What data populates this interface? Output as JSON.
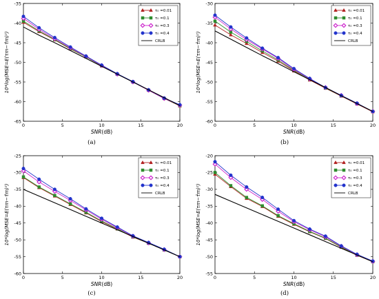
{
  "legend_labels": [
    "τ₀ =0.01",
    "τ₀ =0.1",
    "τ₀ =0.3",
    "τ₀ =0.4",
    "CRLB"
  ],
  "series_colors": [
    "#b22222",
    "#2e8b2e",
    "#cc22cc",
    "#2233cc",
    "#000000"
  ],
  "series_markers": [
    "triangle",
    "square",
    "diamond",
    "circle",
    "none"
  ],
  "chart_data": [
    {
      "type": "line",
      "caption": "(a)",
      "xlabel_var": "SNR",
      "xlabel_unit": "(dB)",
      "ylabel": "10*log(MSE=E(τm−τ̂m)²)",
      "xlim": [
        0,
        20
      ],
      "ylim": [
        -65,
        -35
      ],
      "xticks": [
        0,
        5,
        10,
        15,
        20
      ],
      "yticks": [
        -65,
        -60,
        -55,
        -50,
        -45,
        -40,
        -35
      ],
      "legend_position": "top-right",
      "x": [
        0,
        2,
        4,
        6,
        8,
        10,
        12,
        14,
        16,
        18,
        20
      ],
      "series": [
        {
          "name": "τ₀ =0.01",
          "values": [
            -39.8,
            -42.2,
            -44.3,
            -46.6,
            -48.6,
            -50.9,
            -53.0,
            -55.0,
            -57.1,
            -59.2,
            -61.1
          ]
        },
        {
          "name": "τ₀ =0.1",
          "values": [
            -39.5,
            -42.0,
            -44.2,
            -46.5,
            -48.6,
            -50.9,
            -53.0,
            -55.0,
            -57.1,
            -59.2,
            -61.0
          ]
        },
        {
          "name": "τ₀ =0.3",
          "values": [
            -38.8,
            -41.6,
            -44.0,
            -46.3,
            -48.5,
            -50.8,
            -53.0,
            -55.0,
            -57.1,
            -59.2,
            -60.9
          ]
        },
        {
          "name": "τ₀ =0.4",
          "values": [
            -38.3,
            -41.2,
            -43.7,
            -46.1,
            -48.4,
            -50.7,
            -52.9,
            -54.9,
            -57.0,
            -59.1,
            -60.8
          ]
        },
        {
          "name": "CRLB",
          "values": [
            -41.0,
            -43.1,
            -45.0,
            -47.0,
            -49.0,
            -51.0,
            -53.0,
            -55.0,
            -57.0,
            -59.0,
            -61.0
          ]
        }
      ]
    },
    {
      "type": "line",
      "caption": "(b)",
      "xlabel_var": "SNR",
      "xlabel_unit": "(dB)",
      "ylabel": "10*log(MSE=E(τm−τ̂m)²)",
      "xlim": [
        0,
        20
      ],
      "ylim": [
        -60,
        -30
      ],
      "xticks": [
        0,
        5,
        10,
        15,
        20
      ],
      "yticks": [
        -60,
        -55,
        -50,
        -45,
        -40,
        -35,
        -30
      ],
      "legend_position": "top-right",
      "x": [
        0,
        2,
        4,
        6,
        8,
        10,
        12,
        14,
        16,
        18,
        20
      ],
      "series": [
        {
          "name": "τ₀ =0.01",
          "values": [
            -35.5,
            -38.0,
            -40.2,
            -42.5,
            -44.7,
            -47.2,
            -49.5,
            -51.6,
            -53.6,
            -55.6,
            -57.6
          ]
        },
        {
          "name": "τ₀ =0.1",
          "values": [
            -34.5,
            -37.3,
            -39.7,
            -42.1,
            -44.4,
            -47.0,
            -49.3,
            -51.5,
            -53.5,
            -55.5,
            -57.5
          ]
        },
        {
          "name": "τ₀ =0.3",
          "values": [
            -33.5,
            -36.5,
            -39.2,
            -41.6,
            -44.0,
            -46.8,
            -49.2,
            -51.4,
            -53.4,
            -55.5,
            -57.5
          ]
        },
        {
          "name": "τ₀ =0.4",
          "values": [
            -33.0,
            -36.0,
            -38.8,
            -41.4,
            -43.8,
            -46.6,
            -49.1,
            -51.4,
            -53.4,
            -55.4,
            -57.5
          ]
        },
        {
          "name": "CRLB",
          "values": [
            -37.0,
            -39.1,
            -41.2,
            -43.3,
            -45.3,
            -47.4,
            -49.4,
            -51.4,
            -53.5,
            -55.5,
            -57.5
          ]
        }
      ]
    },
    {
      "type": "line",
      "caption": "(c)",
      "xlabel_var": "SNR",
      "xlabel_unit": "(dB)",
      "ylabel": "10*log(MSE=E(τm−τ̂m)²)",
      "xlim": [
        0,
        20
      ],
      "ylim": [
        -60,
        -25
      ],
      "xticks": [
        0,
        5,
        10,
        15,
        20
      ],
      "yticks": [
        -60,
        -55,
        -50,
        -45,
        -40,
        -35,
        -30,
        -25
      ],
      "legend_position": "top-right",
      "x": [
        0,
        2,
        4,
        6,
        8,
        10,
        12,
        14,
        16,
        18,
        20
      ],
      "series": [
        {
          "name": "τ₀ =0.01",
          "values": [
            -31.5,
            -34.5,
            -37.0,
            -39.5,
            -42.0,
            -44.6,
            -46.8,
            -49.2,
            -51.0,
            -53.0,
            -55.0
          ]
        },
        {
          "name": "τ₀ =0.1",
          "values": [
            -31.3,
            -34.3,
            -36.8,
            -39.3,
            -41.8,
            -44.4,
            -46.7,
            -49.1,
            -51.0,
            -53.0,
            -55.0
          ]
        },
        {
          "name": "τ₀ =0.3",
          "values": [
            -29.5,
            -32.8,
            -35.6,
            -38.3,
            -41.1,
            -43.9,
            -46.4,
            -48.9,
            -50.9,
            -52.9,
            -55.0
          ]
        },
        {
          "name": "τ₀ =0.4",
          "values": [
            -28.8,
            -32.0,
            -35.0,
            -37.8,
            -40.8,
            -43.6,
            -46.2,
            -48.8,
            -50.8,
            -52.8,
            -55.0
          ]
        },
        {
          "name": "CRLB",
          "values": [
            -35.0,
            -37.0,
            -39.0,
            -41.0,
            -43.0,
            -45.0,
            -47.0,
            -49.0,
            -51.0,
            -53.0,
            -55.0
          ]
        }
      ]
    },
    {
      "type": "line",
      "caption": "(d)",
      "xlabel_var": "SNR",
      "xlabel_unit": "(dB)",
      "ylabel": "10*log(MSE=E(τm−τ̂m)²)",
      "xlim": [
        0,
        20
      ],
      "ylim": [
        -55,
        -20
      ],
      "xticks": [
        0,
        5,
        10,
        15,
        20
      ],
      "yticks": [
        -55,
        -50,
        -45,
        -40,
        -35,
        -30,
        -25,
        -20
      ],
      "legend_position": "top-right",
      "x": [
        0,
        2,
        4,
        6,
        8,
        10,
        12,
        14,
        16,
        18,
        20
      ],
      "series": [
        {
          "name": "τ₀ =0.01",
          "values": [
            -25.5,
            -29.2,
            -32.7,
            -35.1,
            -38.0,
            -40.4,
            -42.6,
            -44.6,
            -47.2,
            -49.6,
            -51.5
          ]
        },
        {
          "name": "τ₀ =0.1",
          "values": [
            -25.0,
            -28.9,
            -32.4,
            -34.9,
            -37.8,
            -40.2,
            -42.5,
            -44.5,
            -47.1,
            -49.5,
            -51.5
          ]
        },
        {
          "name": "τ₀ =0.3",
          "values": [
            -22.5,
            -26.5,
            -30.0,
            -33.0,
            -36.5,
            -39.6,
            -42.0,
            -44.1,
            -46.9,
            -49.4,
            -51.4
          ]
        },
        {
          "name": "τ₀ =0.4",
          "values": [
            -21.8,
            -25.8,
            -29.3,
            -32.4,
            -35.9,
            -39.3,
            -41.8,
            -43.9,
            -46.8,
            -49.3,
            -51.3
          ]
        },
        {
          "name": "CRLB",
          "values": [
            -31.5,
            -33.5,
            -35.5,
            -37.5,
            -39.5,
            -41.5,
            -43.5,
            -45.5,
            -47.5,
            -49.5,
            -51.5
          ]
        }
      ]
    }
  ]
}
